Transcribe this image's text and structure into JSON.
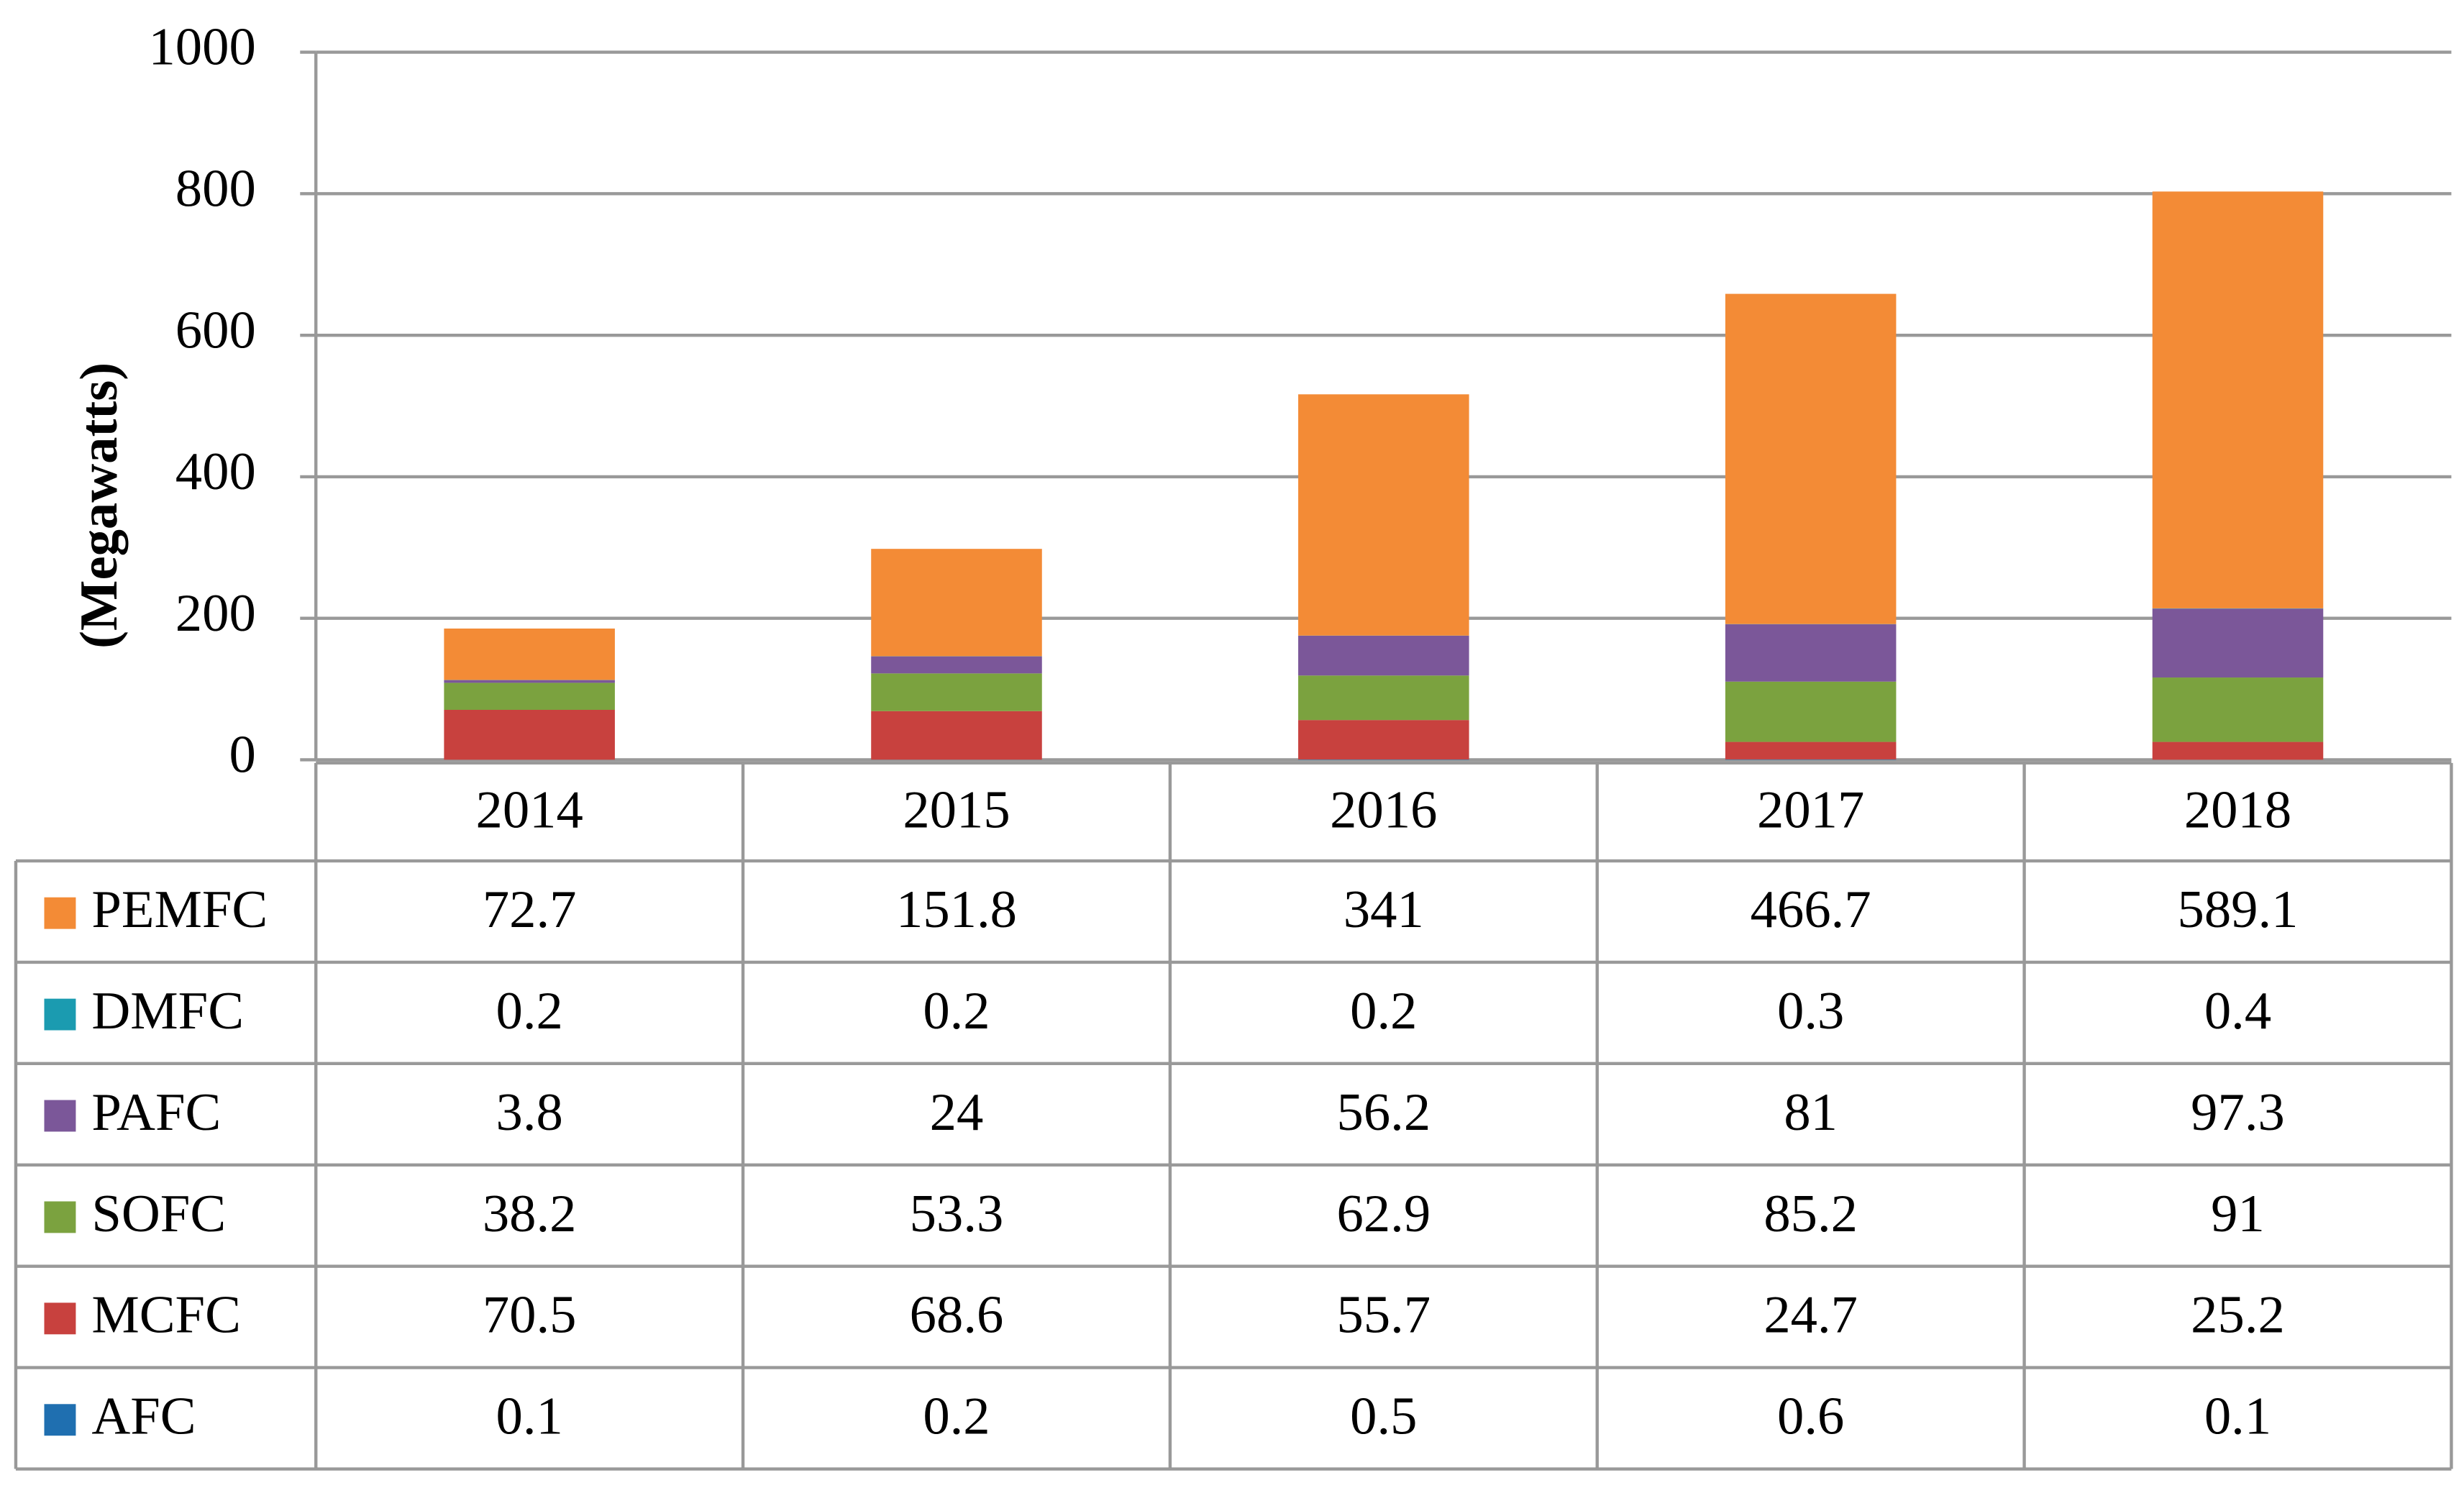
{
  "chart_data": {
    "type": "stacked_bar",
    "y_label": "(Megawatts)",
    "categories": [
      "2014",
      "2015",
      "2016",
      "2017",
      "2018"
    ],
    "series": [
      {
        "name": "PEMFC",
        "color": "#f38b36",
        "values": [
          72.7,
          151.8,
          341,
          466.7,
          589.1
        ]
      },
      {
        "name": "DMFC",
        "color": "#1b9bb0",
        "values": [
          0.2,
          0.2,
          0.2,
          0.3,
          0.4
        ]
      },
      {
        "name": "PAFC",
        "color": "#7b5799",
        "values": [
          3.8,
          24,
          56.2,
          81,
          97.3
        ]
      },
      {
        "name": "SOFC",
        "color": "#7ba23f",
        "values": [
          38.2,
          53.3,
          62.9,
          85.2,
          91
        ]
      },
      {
        "name": "MCFC",
        "color": "#c8413e",
        "values": [
          70.5,
          68.6,
          55.7,
          24.7,
          25.2
        ]
      },
      {
        "name": "AFC",
        "color": "#1f6fb0",
        "values": [
          0.1,
          0.2,
          0.5,
          0.6,
          0.1
        ]
      }
    ],
    "ylim": [
      0,
      1000
    ],
    "yticks": [
      0,
      200,
      400,
      600,
      800,
      1000
    ],
    "grid": true,
    "data_table": true
  }
}
